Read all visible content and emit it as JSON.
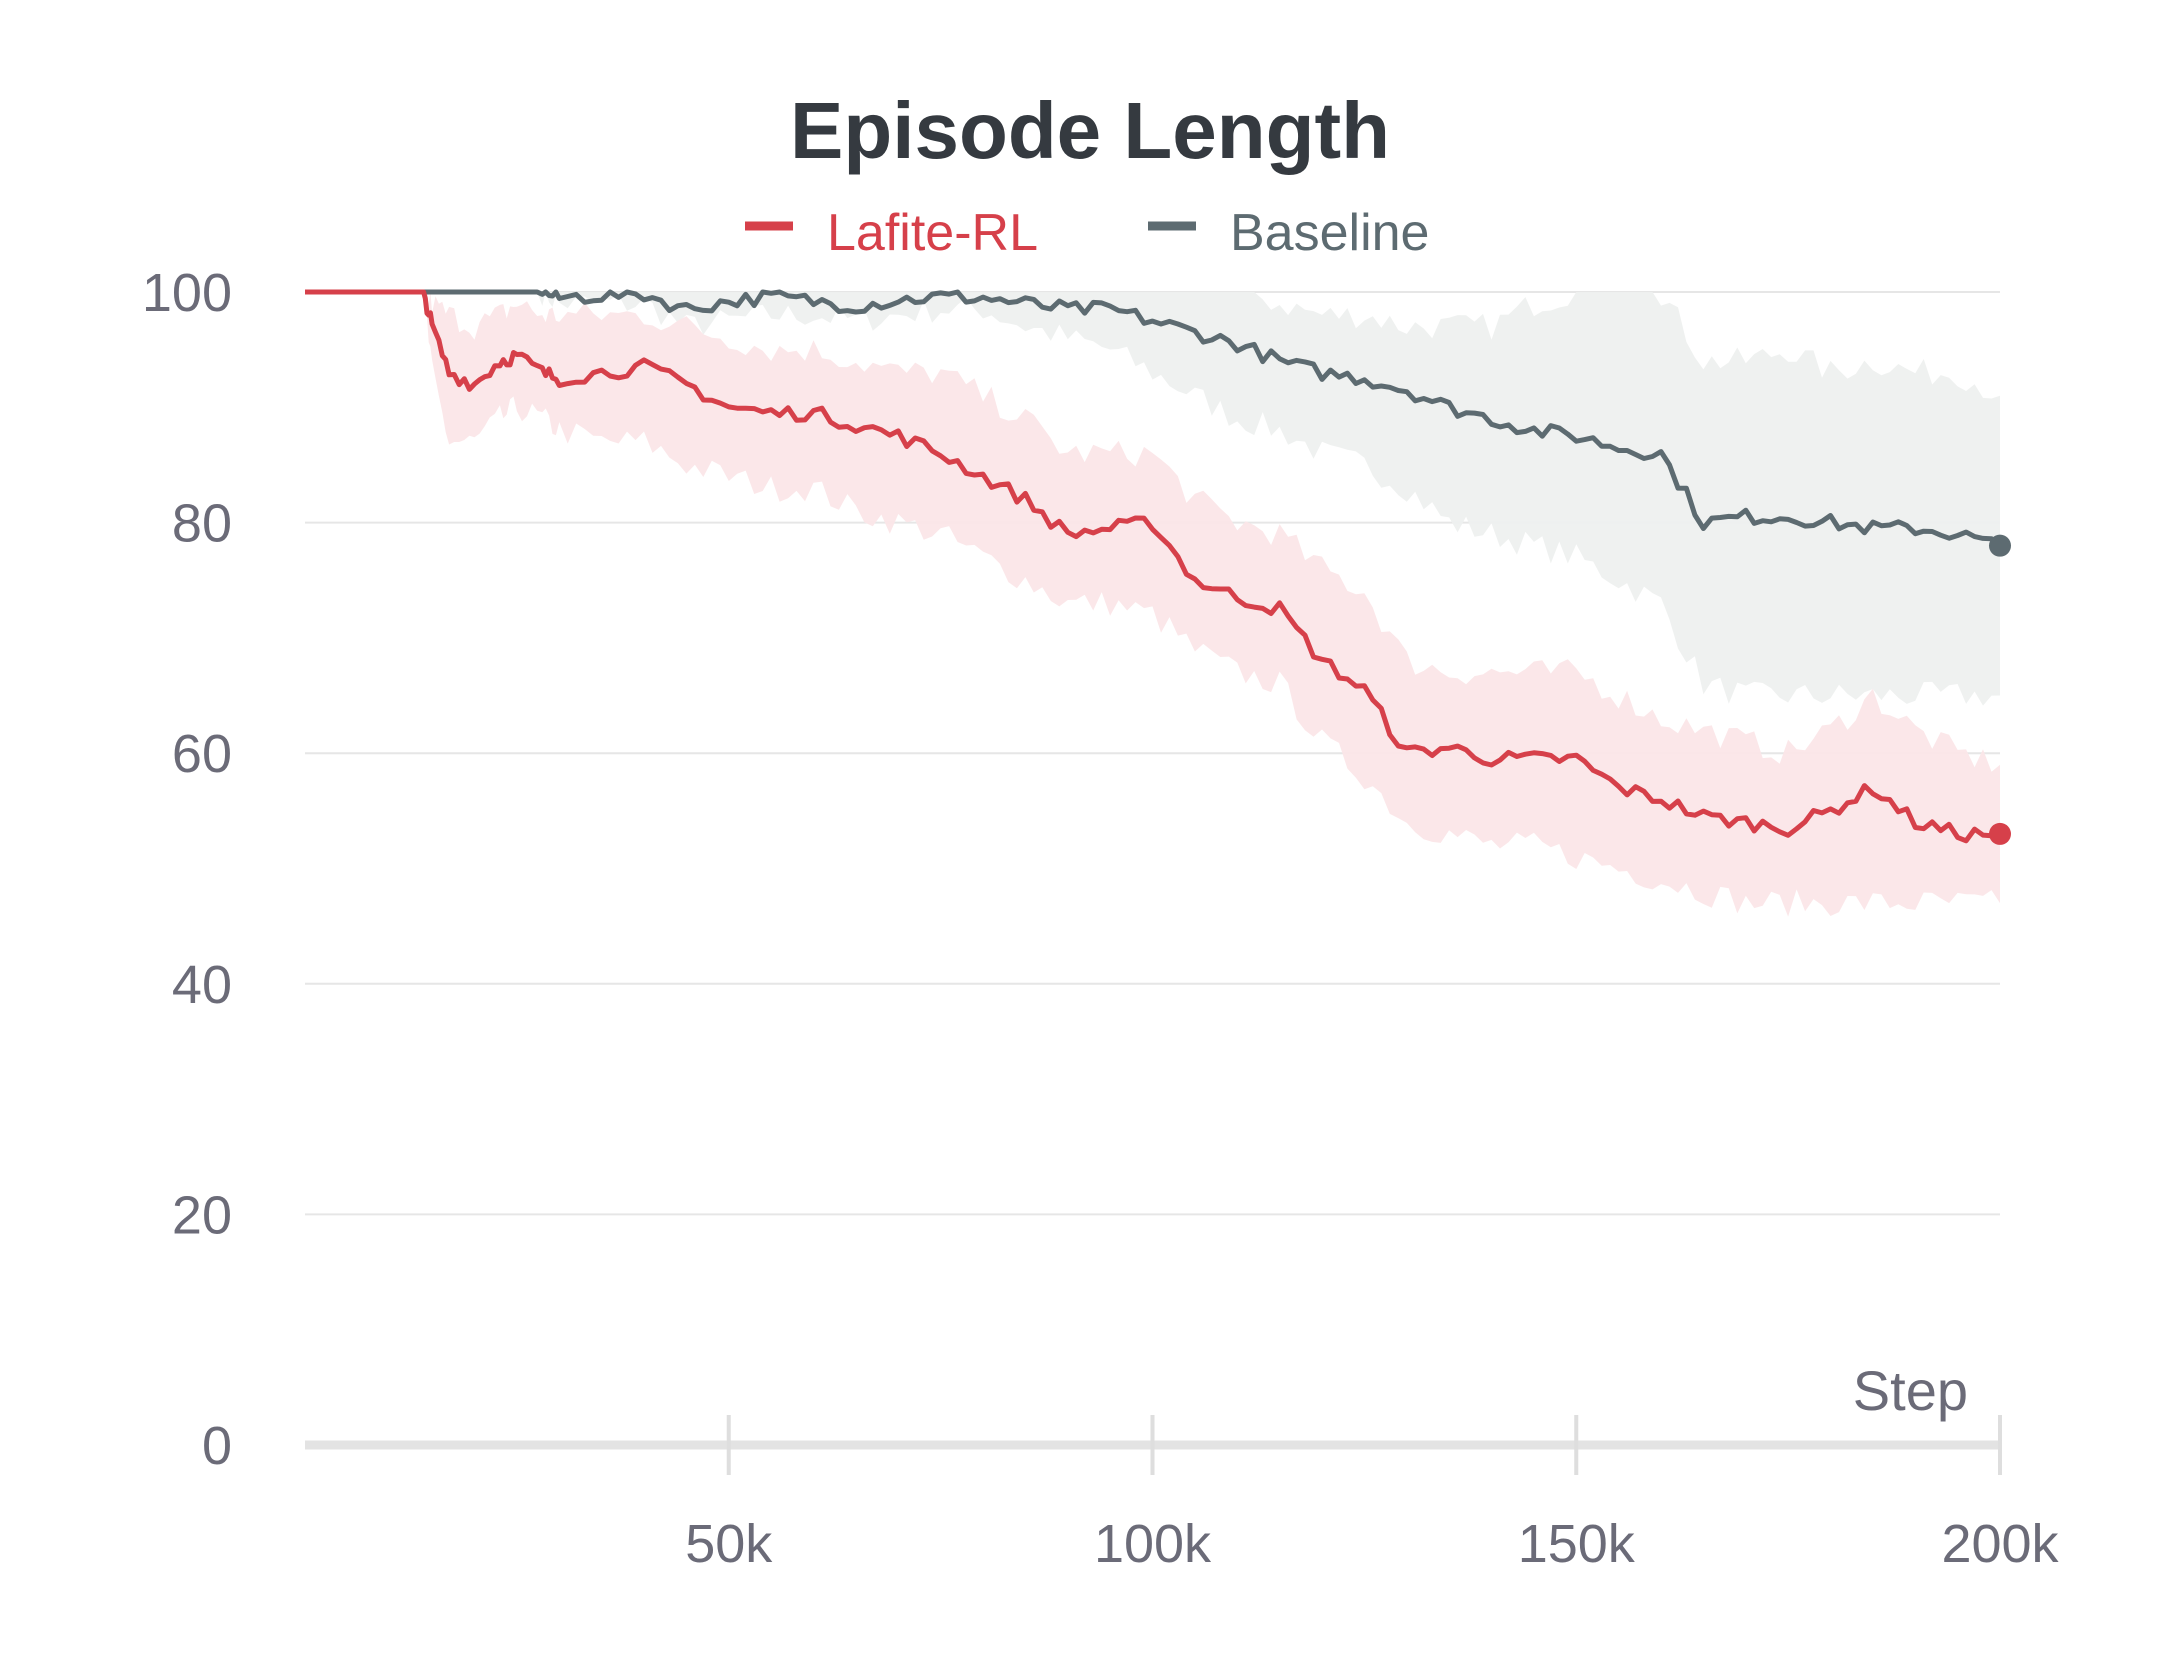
{
  "chart_data": {
    "type": "line",
    "title": "Episode Length",
    "xlabel": "Step",
    "ylabel": "",
    "xlim": [
      0,
      200000
    ],
    "ylim": [
      0,
      100
    ],
    "legend_position": "top-center",
    "grid": true,
    "x_ticks": [
      50000,
      100000,
      150000,
      200000
    ],
    "x_tick_labels": [
      "50k",
      "100k",
      "150k",
      "200k"
    ],
    "y_ticks": [
      0,
      20,
      40,
      60,
      80,
      100
    ],
    "y_tick_labels": [
      "0",
      "20",
      "40",
      "60",
      "80",
      "100"
    ],
    "x": [
      0,
      5000,
      10000,
      14000,
      15000,
      17000,
      20000,
      23000,
      25000,
      28000,
      30000,
      35000,
      40000,
      45000,
      50000,
      55000,
      60000,
      65000,
      70000,
      75000,
      80000,
      85000,
      90000,
      95000,
      100000,
      105000,
      110000,
      115000,
      120000,
      125000,
      130000,
      135000,
      140000,
      145000,
      150000,
      155000,
      160000,
      165000,
      170000,
      175000,
      180000,
      185000,
      190000,
      195000,
      200000
    ],
    "series": [
      {
        "name": "Lafite-RL",
        "color": "#d6404a",
        "band_color": "#fbe6e8",
        "values": [
          100,
          100,
          100,
          100,
          97,
          93,
          92,
          94,
          94.5,
          93,
          92.5,
          93,
          93.5,
          92,
          90,
          89.5,
          89.5,
          88.5,
          87.5,
          86,
          84,
          82,
          79,
          79.5,
          80,
          75,
          73.5,
          72.5,
          68,
          65.5,
          60,
          60.5,
          59.5,
          59.5,
          59.5,
          57,
          56,
          54.5,
          54,
          53.5,
          55,
          57,
          54,
          53,
          53
        ],
        "band_lower": [
          100,
          100,
          100,
          100,
          93,
          87,
          87,
          89,
          90,
          89,
          88,
          87,
          87,
          85,
          84,
          83,
          83,
          81,
          80,
          79,
          77,
          75,
          73,
          73,
          72,
          69,
          67,
          66,
          61,
          58,
          54,
          53,
          52,
          52,
          51,
          50,
          49,
          48,
          47,
          47,
          47,
          47,
          47,
          47,
          47
        ],
        "band_upper": [
          100,
          100,
          100,
          100,
          99,
          98,
          97,
          98,
          99,
          98,
          98,
          98,
          98,
          97,
          96,
          95,
          95,
          94,
          93,
          93,
          91,
          89,
          86,
          86,
          86,
          82,
          80,
          79,
          76,
          74,
          68,
          67,
          67,
          67,
          67,
          65,
          63,
          62,
          61,
          60,
          62,
          65,
          62,
          60,
          59
        ]
      },
      {
        "name": "Baseline",
        "color": "#5d6b71",
        "band_color": "#eef0ef",
        "values": [
          100,
          100,
          100,
          100,
          100,
          100,
          100,
          100,
          100,
          100,
          99.5,
          99.7,
          99.8,
          98.5,
          99.2,
          99.6,
          99.2,
          98.8,
          99.3,
          99.6,
          99.5,
          99,
          98.5,
          98.5,
          97.5,
          96.5,
          95.5,
          94,
          93,
          92.5,
          91.5,
          90,
          89,
          88,
          87.5,
          86.5,
          86,
          80,
          80.5,
          80.5,
          80,
          79.5,
          79.5,
          79,
          78
        ],
        "band_lower": [
          100,
          100,
          100,
          100,
          100,
          100,
          100,
          100,
          100,
          100,
          99,
          99,
          99,
          97,
          97.5,
          98,
          98,
          97.5,
          98,
          98.5,
          98.5,
          97,
          96,
          95,
          93,
          91,
          89,
          88,
          86,
          85,
          83,
          80,
          79,
          78,
          77,
          75,
          73,
          66,
          65,
          65,
          65,
          65,
          65,
          65,
          65
        ],
        "band_upper": [
          100,
          100,
          100,
          100,
          100,
          100,
          100,
          100,
          100,
          100,
          100,
          100,
          100,
          100,
          100,
          100,
          100,
          100,
          100,
          100,
          100,
          100,
          100,
          100,
          100,
          100,
          100,
          99,
          98,
          98,
          97,
          97,
          97,
          99,
          100,
          100,
          100,
          94,
          94,
          95,
          93,
          94,
          93,
          93,
          91
        ]
      }
    ]
  }
}
